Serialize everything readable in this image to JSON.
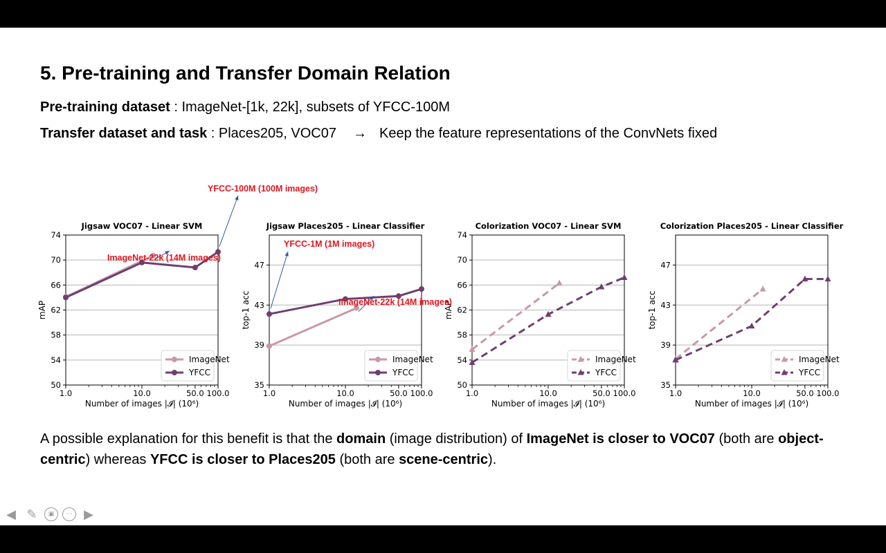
{
  "slide": {
    "title": "5. Pre-training and Transfer Domain Relation",
    "pretrain_label": "Pre-training dataset",
    "pretrain_value": " : ImageNet-[1k, 22k], subsets of YFCC-100M",
    "transfer_label": "Transfer dataset and task",
    "transfer_value": " : Places205, VOC07",
    "transfer_arrow": "→",
    "transfer_note": "Keep the feature representations of the ConvNets fixed",
    "para": [
      {
        "t": "A possible explanation for this benefit is that the ",
        "b": false
      },
      {
        "t": "domain",
        "b": true
      },
      {
        "t": " (image distribution) of ",
        "b": false
      },
      {
        "t": "ImageNet is closer to VOC07",
        "b": true
      },
      {
        "t": " (both are ",
        "b": false
      },
      {
        "t": "object-centric",
        "b": true
      },
      {
        "t": ") whereas ",
        "b": false
      },
      {
        "t": "YFCC is closer to Places205",
        "b": true
      },
      {
        "t": " (both are ",
        "b": false
      },
      {
        "t": "scene-centric",
        "b": true
      },
      {
        "t": ").",
        "b": false
      }
    ]
  },
  "nav": {
    "icons": [
      "prev-arrow-icon",
      "pen-icon",
      "slide-view-icon",
      "more-icon",
      "next-arrow-icon"
    ]
  },
  "colors": {
    "imagenet": "#c799a8",
    "yfcc": "#6e3f6e",
    "annotation": "#e0161e",
    "annotation_arrow": "#2a5aa8",
    "grid": "#b5b5b5"
  },
  "chart_data": [
    {
      "type": "line",
      "title": "Jigsaw VOC07 - Linear SVM",
      "xlabel": "Number of images |𝓘| (10⁶)",
      "ylabel": "mAP",
      "xscale": "log",
      "xlim": [
        1,
        100
      ],
      "xticks": [
        1,
        10,
        50,
        100
      ],
      "xtick_labels": [
        "1.0",
        "10.0",
        "50.0",
        "100.0"
      ],
      "ylim": [
        50,
        74
      ],
      "yticks": [
        50,
        54,
        58,
        62,
        66,
        70,
        74
      ],
      "grid": "y",
      "marker": "circle",
      "legend_position": "lower-right",
      "series": [
        {
          "name": "ImageNet",
          "color": "#c799a8",
          "dash": false,
          "points": [
            [
              1,
              64.1
            ],
            [
              14,
              70.7
            ]
          ]
        },
        {
          "name": "YFCC",
          "color": "#6e3f6e",
          "dash": false,
          "points": [
            [
              1,
              64
            ],
            [
              10,
              69.6
            ],
            [
              50,
              68.8
            ],
            [
              100,
              71.3
            ]
          ]
        }
      ],
      "annotations": [
        {
          "text": "YFCC-100M (100M images)",
          "target": [
            100,
            71.3
          ]
        },
        {
          "text": "ImageNet-22k (14M images)",
          "target": [
            14,
            70.7
          ]
        }
      ]
    },
    {
      "type": "line",
      "title": "Jigsaw Places205 - Linear Classifier",
      "xlabel": "Number of images |𝓘| (10⁶)",
      "ylabel": "top-1 acc",
      "xscale": "log",
      "xlim": [
        1,
        100
      ],
      "xticks": [
        1,
        10,
        50,
        100
      ],
      "xtick_labels": [
        "1.0",
        "10.0",
        "50.0",
        "100.0"
      ],
      "ylim": [
        35,
        50
      ],
      "yticks": [
        35,
        39,
        43,
        47
      ],
      "grid": "y",
      "marker": "circle",
      "legend_position": "lower-right",
      "series": [
        {
          "name": "ImageNet",
          "color": "#c799a8",
          "dash": false,
          "points": [
            [
              1,
              38.9
            ],
            [
              14,
              42.7
            ]
          ]
        },
        {
          "name": "YFCC",
          "color": "#6e3f6e",
          "dash": false,
          "points": [
            [
              1,
              42.1
            ],
            [
              10,
              43.6
            ],
            [
              50,
              43.9
            ],
            [
              100,
              44.6
            ]
          ]
        }
      ],
      "annotations": [
        {
          "text": "YFCC-1M (1M images)",
          "target": [
            1,
            42.1
          ]
        },
        {
          "text": "ImageNet-22k (14M images)",
          "target": [
            14,
            42.7
          ]
        }
      ]
    },
    {
      "type": "line",
      "title": "Colorization VOC07 - Linear SVM",
      "xlabel": "Number of images |𝓘| (10⁶)",
      "ylabel": "mAP",
      "xscale": "log",
      "xlim": [
        1,
        100
      ],
      "xticks": [
        1,
        10,
        50,
        100
      ],
      "xtick_labels": [
        "1.0",
        "10.0",
        "50.0",
        "100.0"
      ],
      "ylim": [
        50,
        74
      ],
      "yticks": [
        50,
        54,
        58,
        62,
        66,
        70,
        74
      ],
      "grid": "y",
      "marker": "triangle",
      "legend_position": "lower-right",
      "series": [
        {
          "name": "ImageNet",
          "color": "#c799a8",
          "dash": true,
          "points": [
            [
              1,
              55.7
            ],
            [
              14,
              66.3
            ]
          ]
        },
        {
          "name": "YFCC",
          "color": "#6e3f6e",
          "dash": true,
          "points": [
            [
              1,
              53.6
            ],
            [
              10,
              61.3
            ],
            [
              50,
              65.7
            ],
            [
              100,
              67.2
            ]
          ]
        }
      ],
      "annotations": []
    },
    {
      "type": "line",
      "title": "Colorization Places205 - Linear Classifier",
      "xlabel": "Number of images |𝓘| (10⁶)",
      "ylabel": "top-1 acc",
      "xscale": "log",
      "xlim": [
        1,
        100
      ],
      "xticks": [
        1,
        10,
        50,
        100
      ],
      "xtick_labels": [
        "1.0",
        "10.0",
        "50.0",
        "100.0"
      ],
      "ylim": [
        35,
        50
      ],
      "yticks": [
        35,
        39,
        43,
        47
      ],
      "grid": "y",
      "marker": "triangle",
      "legend_position": "lower-right",
      "series": [
        {
          "name": "ImageNet",
          "color": "#c799a8",
          "dash": true,
          "points": [
            [
              1,
              37.6
            ],
            [
              14,
              44.6
            ]
          ]
        },
        {
          "name": "YFCC",
          "color": "#6e3f6e",
          "dash": true,
          "points": [
            [
              1,
              37.5
            ],
            [
              10,
              40.9
            ],
            [
              50,
              45.6
            ],
            [
              100,
              45.6
            ]
          ]
        }
      ],
      "annotations": []
    }
  ]
}
